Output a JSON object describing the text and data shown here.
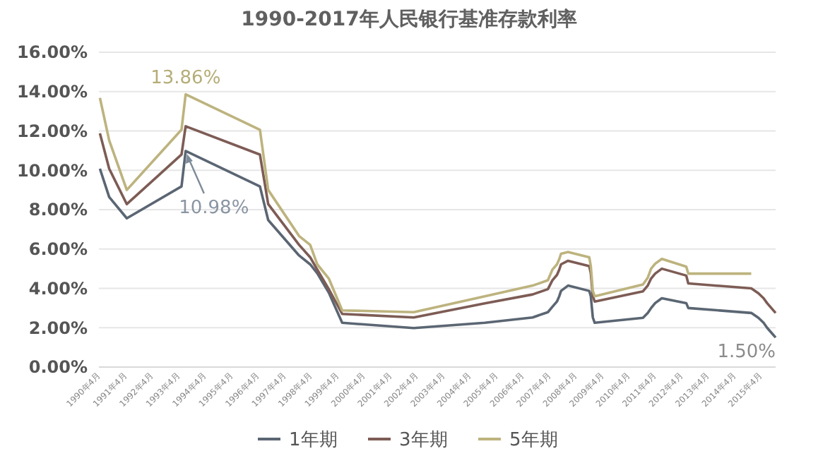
{
  "chart_data": {
    "type": "line",
    "title": "1990-2017年人民银行基准存款利率",
    "x": [
      "1990-04-15",
      "1990-08-21",
      "1991-04-21",
      "1993-05-15",
      "1993-07-11",
      "1996-05-01",
      "1996-08-23",
      "1997-10-23",
      "1998-03-25",
      "1998-07-01",
      "1998-12-07",
      "1999-06-10",
      "2002-02-21",
      "2004-10-29",
      "2006-08-19",
      "2007-03-18",
      "2007-05-19",
      "2007-07-21",
      "2007-08-22",
      "2007-09-15",
      "2007-12-21",
      "2008-10-09",
      "2008-10-30",
      "2008-11-27",
      "2008-12-23",
      "2010-10-20",
      "2010-12-26",
      "2011-02-09",
      "2011-04-06",
      "2011-07-07",
      "2012-06-08",
      "2012-07-06",
      "2014-11-22",
      "2015-03-01",
      "2015-05-11",
      "2015-06-28",
      "2015-08-26",
      "2015-10-24"
    ],
    "series": [
      {
        "name": "1年期",
        "color": "#5b6673",
        "values": [
          10.08,
          8.64,
          7.56,
          9.18,
          10.98,
          9.18,
          7.47,
          5.67,
          5.22,
          4.77,
          3.78,
          2.25,
          1.98,
          2.25,
          2.52,
          2.79,
          3.06,
          3.33,
          3.6,
          3.87,
          4.14,
          3.87,
          3.6,
          2.52,
          2.25,
          2.5,
          2.75,
          3.0,
          3.25,
          3.5,
          3.25,
          3.0,
          2.75,
          2.5,
          2.25,
          2.0,
          1.75,
          1.5
        ]
      },
      {
        "name": "3年期",
        "color": "#7d5c55",
        "values": [
          11.88,
          10.08,
          8.28,
          10.8,
          12.24,
          10.8,
          8.28,
          6.21,
          5.58,
          4.95,
          3.96,
          2.7,
          2.52,
          3.24,
          3.69,
          3.96,
          4.41,
          4.68,
          4.95,
          5.22,
          5.4,
          5.13,
          4.77,
          3.6,
          3.33,
          3.85,
          4.15,
          4.5,
          4.75,
          5.0,
          4.65,
          4.25,
          4.0,
          3.75,
          3.5,
          3.25,
          3.0,
          2.75
        ]
      },
      {
        "name": "5年期",
        "color": "#bdb37e",
        "values": [
          13.68,
          11.52,
          9.0,
          12.06,
          13.86,
          12.06,
          9.0,
          6.66,
          6.21,
          5.22,
          4.5,
          2.88,
          2.79,
          3.6,
          4.14,
          4.41,
          4.95,
          5.22,
          5.49,
          5.76,
          5.85,
          5.58,
          5.13,
          3.87,
          3.6,
          4.2,
          4.55,
          5.0,
          5.25,
          5.5,
          5.1,
          4.75,
          4.75,
          null,
          null,
          null,
          null,
          null
        ]
      }
    ],
    "xlim": [
      "1990-04-01",
      "2015-10-24"
    ],
    "xticks": [
      {
        "value": "1990-04",
        "label": "1990年4月"
      },
      {
        "value": "1991-04",
        "label": "1991年4月"
      },
      {
        "value": "1992-04",
        "label": "1992年4月"
      },
      {
        "value": "1993-04",
        "label": "1993年4月"
      },
      {
        "value": "1994-04",
        "label": "1994年4月"
      },
      {
        "value": "1995-04",
        "label": "1995年4月"
      },
      {
        "value": "1996-04",
        "label": "1996年4月"
      },
      {
        "value": "1997-04",
        "label": "1997年4月"
      },
      {
        "value": "1998-04",
        "label": "1998年4月"
      },
      {
        "value": "1999-04",
        "label": "1999年4月"
      },
      {
        "value": "2000-04",
        "label": "2000年4月"
      },
      {
        "value": "2001-04",
        "label": "2001年4月"
      },
      {
        "value": "2002-04",
        "label": "2002年4月"
      },
      {
        "value": "2003-04",
        "label": "2003年4月"
      },
      {
        "value": "2004-04",
        "label": "2004年4月"
      },
      {
        "value": "2005-04",
        "label": "2005年4月"
      },
      {
        "value": "2006-04",
        "label": "2006年4月"
      },
      {
        "value": "2007-04",
        "label": "2007年4月"
      },
      {
        "value": "2008-04",
        "label": "2008年4月"
      },
      {
        "value": "2009-04",
        "label": "2009年4月"
      },
      {
        "value": "2010-04",
        "label": "2010年4月"
      },
      {
        "value": "2011-04",
        "label": "2011年4月"
      },
      {
        "value": "2012-04",
        "label": "2012年4月"
      },
      {
        "value": "2013-04",
        "label": "2013年4月"
      },
      {
        "value": "2014-04",
        "label": "2014年4月"
      },
      {
        "value": "2015-04",
        "label": "2015年4月"
      }
    ],
    "ylim": [
      0,
      16
    ],
    "yticks": [
      {
        "value": 0,
        "label": "0.00%"
      },
      {
        "value": 2,
        "label": "2.00%"
      },
      {
        "value": 4,
        "label": "4.00%"
      },
      {
        "value": 6,
        "label": "6.00%"
      },
      {
        "value": 8,
        "label": "8.00%"
      },
      {
        "value": 10,
        "label": "10.00%"
      },
      {
        "value": 12,
        "label": "12.00%"
      },
      {
        "value": 14,
        "label": "14.00%"
      },
      {
        "value": 16,
        "label": "16.00%"
      }
    ],
    "grid": "y",
    "legend": "bottom",
    "annotations": [
      {
        "text": "13.86%",
        "x": "1993-07-11",
        "y": 13.86
      },
      {
        "text": "10.98%",
        "x": "1993-07-11",
        "y": 10.98
      },
      {
        "text": "1.50%",
        "x": "2015-10-24",
        "y": 1.5
      }
    ]
  }
}
